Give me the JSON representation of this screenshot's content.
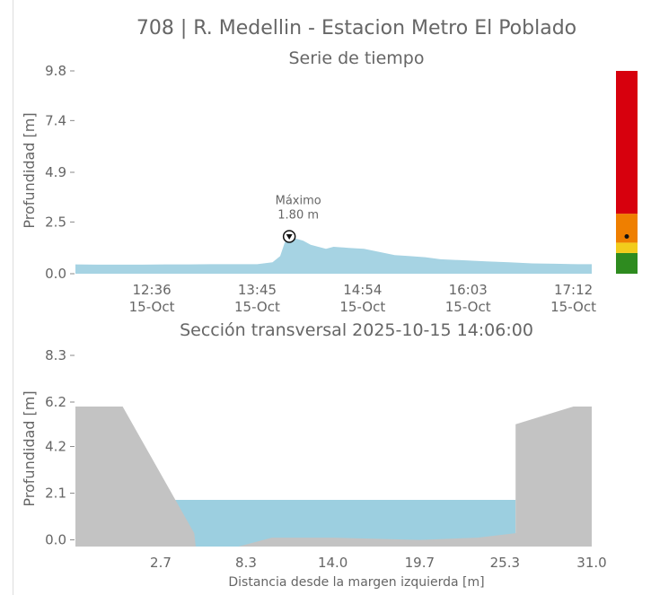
{
  "figure": {
    "title": "708 | R. Medellin - Estacion Metro El Poblado"
  },
  "chart_data": [
    {
      "type": "area",
      "title": "Serie de tiempo",
      "ylabel": "Profundidad [m]",
      "xlabel": "",
      "ylim": [
        0,
        9.8
      ],
      "yticks": [
        0.0,
        2.5,
        4.9,
        7.4,
        9.8
      ],
      "ytick_labels": [
        "0.0",
        "2.5",
        "4.9",
        "7.4",
        "9.8"
      ],
      "xlim_minutes": [
        "11:46",
        "17:24"
      ],
      "xticks": [
        {
          "time": "12:36",
          "date": "15-Oct"
        },
        {
          "time": "13:45",
          "date": "15-Oct"
        },
        {
          "time": "14:54",
          "date": "15-Oct"
        },
        {
          "time": "16:03",
          "date": "15-Oct"
        },
        {
          "time": "17:12",
          "date": "15-Oct"
        }
      ],
      "color": "#a6d3e3",
      "series": [
        {
          "x": [
            "11:46",
            "12:00",
            "12:15",
            "12:30",
            "12:45",
            "13:00",
            "13:15",
            "13:30",
            "13:45",
            "13:55",
            "14:00",
            "14:03",
            "14:06",
            "14:10",
            "14:15",
            "14:20",
            "14:25",
            "14:30",
            "14:35",
            "14:45",
            "14:55",
            "15:05",
            "15:15",
            "15:25",
            "15:35",
            "15:45",
            "16:00",
            "16:15",
            "16:30",
            "16:45",
            "17:00",
            "17:15",
            "17:24"
          ],
          "y": [
            0.45,
            0.44,
            0.44,
            0.44,
            0.45,
            0.45,
            0.46,
            0.46,
            0.46,
            0.55,
            0.85,
            1.5,
            1.8,
            1.7,
            1.6,
            1.4,
            1.3,
            1.2,
            1.3,
            1.25,
            1.2,
            1.05,
            0.9,
            0.85,
            0.8,
            0.7,
            0.65,
            0.6,
            0.55,
            0.5,
            0.48,
            0.46,
            0.46
          ]
        }
      ],
      "annotations": [
        {
          "label": "Máximo",
          "value": "1.80 m",
          "x": "14:06",
          "y": 1.8
        }
      ],
      "level_bar": {
        "bands": [
          {
            "from": 0.0,
            "to": 1.0,
            "color": "#2e8b1f"
          },
          {
            "from": 1.0,
            "to": 1.5,
            "color": "#f2cc1b"
          },
          {
            "from": 1.5,
            "to": 2.9,
            "color": "#ef7f00"
          },
          {
            "from": 2.9,
            "to": 9.8,
            "color": "#d7000d"
          }
        ],
        "current": 1.8
      }
    },
    {
      "type": "area",
      "title": "Sección transversal 2025-10-15 14:06:00",
      "ylabel": "Profundidad [m]",
      "xlabel": "Distancia desde la margen izquierda [m]",
      "xlim": [
        -2.9,
        31.0
      ],
      "ylim": [
        -0.3,
        8.3
      ],
      "yticks": [
        0.0,
        2.1,
        4.2,
        6.2,
        8.3
      ],
      "ytick_labels": [
        "0.0",
        "2.1",
        "4.2",
        "6.2",
        "8.3"
      ],
      "xticks": [
        2.7,
        8.3,
        14.0,
        19.7,
        25.3,
        31.0
      ],
      "xtick_labels": [
        "2.7",
        "8.3",
        "14.0",
        "19.7",
        "25.3",
        "31.0"
      ],
      "water_level": 1.8,
      "water_color": "#9ccfe0",
      "ground_color": "#c3c3c3",
      "ground_profile": {
        "x": [
          -2.9,
          0.2,
          4.9,
          5.0,
          6.2,
          7.8,
          10.0,
          14.0,
          19.7,
          23.5,
          26.0,
          26.0,
          29.8,
          31.0
        ],
        "y": [
          6.0,
          6.0,
          0.3,
          -0.3,
          -0.3,
          -0.3,
          0.1,
          0.1,
          0.0,
          0.1,
          0.3,
          5.2,
          6.0,
          6.0
        ]
      },
      "water_extent": [
        3.6,
        26.0
      ]
    }
  ]
}
